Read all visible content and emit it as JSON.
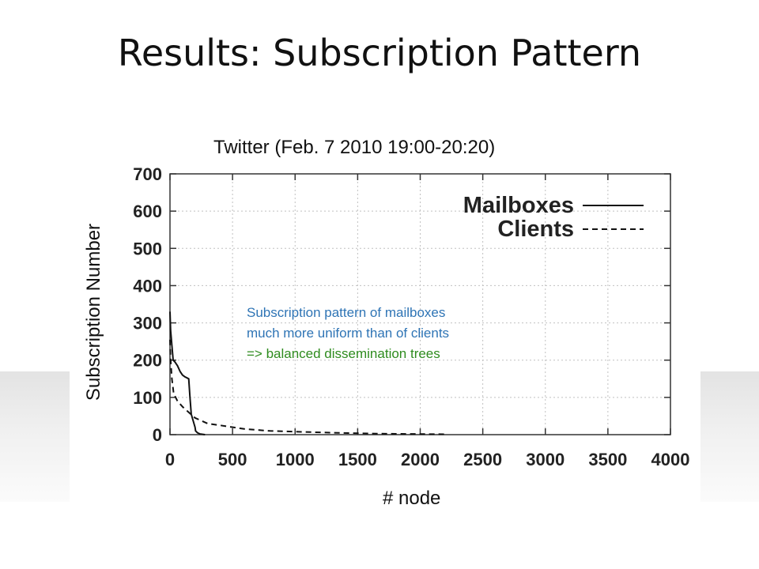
{
  "slide": {
    "title": "Results: Subscription Pattern"
  },
  "colors": {
    "annotation_blue": "#2e74b5",
    "annotation_green": "#2e8b1e"
  },
  "chart_data": {
    "type": "line",
    "title": "Twitter (Feb. 7 2010 19:00-20:20)",
    "xlabel": "# node",
    "ylabel": "Subscription Number",
    "xlim": [
      0,
      4000
    ],
    "ylim": [
      0,
      700
    ],
    "x_ticks": [
      0,
      500,
      1000,
      1500,
      2000,
      2500,
      3000,
      3500,
      4000
    ],
    "y_ticks": [
      0,
      100,
      200,
      300,
      400,
      500,
      600,
      700
    ],
    "grid": true,
    "legend": "top-right",
    "series": [
      {
        "name": "Mailboxes",
        "style": "solid",
        "x": [
          0,
          5,
          15,
          25,
          40,
          60,
          80,
          100,
          120,
          150,
          160,
          170,
          200,
          205,
          220,
          240,
          280
        ],
        "y": [
          330,
          280,
          240,
          200,
          195,
          185,
          170,
          160,
          155,
          150,
          100,
          55,
          20,
          10,
          5,
          2,
          0
        ]
      },
      {
        "name": "Clients",
        "style": "dashed",
        "x": [
          0,
          5,
          15,
          30,
          60,
          100,
          150,
          200,
          300,
          400,
          600,
          800,
          1000,
          1300,
          1600,
          1900,
          2200
        ],
        "y": [
          255,
          200,
          150,
          110,
          90,
          75,
          60,
          45,
          30,
          25,
          15,
          10,
          8,
          5,
          3,
          2,
          1
        ]
      }
    ],
    "annotations": [
      "Subscription pattern of mailboxes",
      "much more uniform than of clients",
      "=> balanced dissemination trees"
    ]
  }
}
